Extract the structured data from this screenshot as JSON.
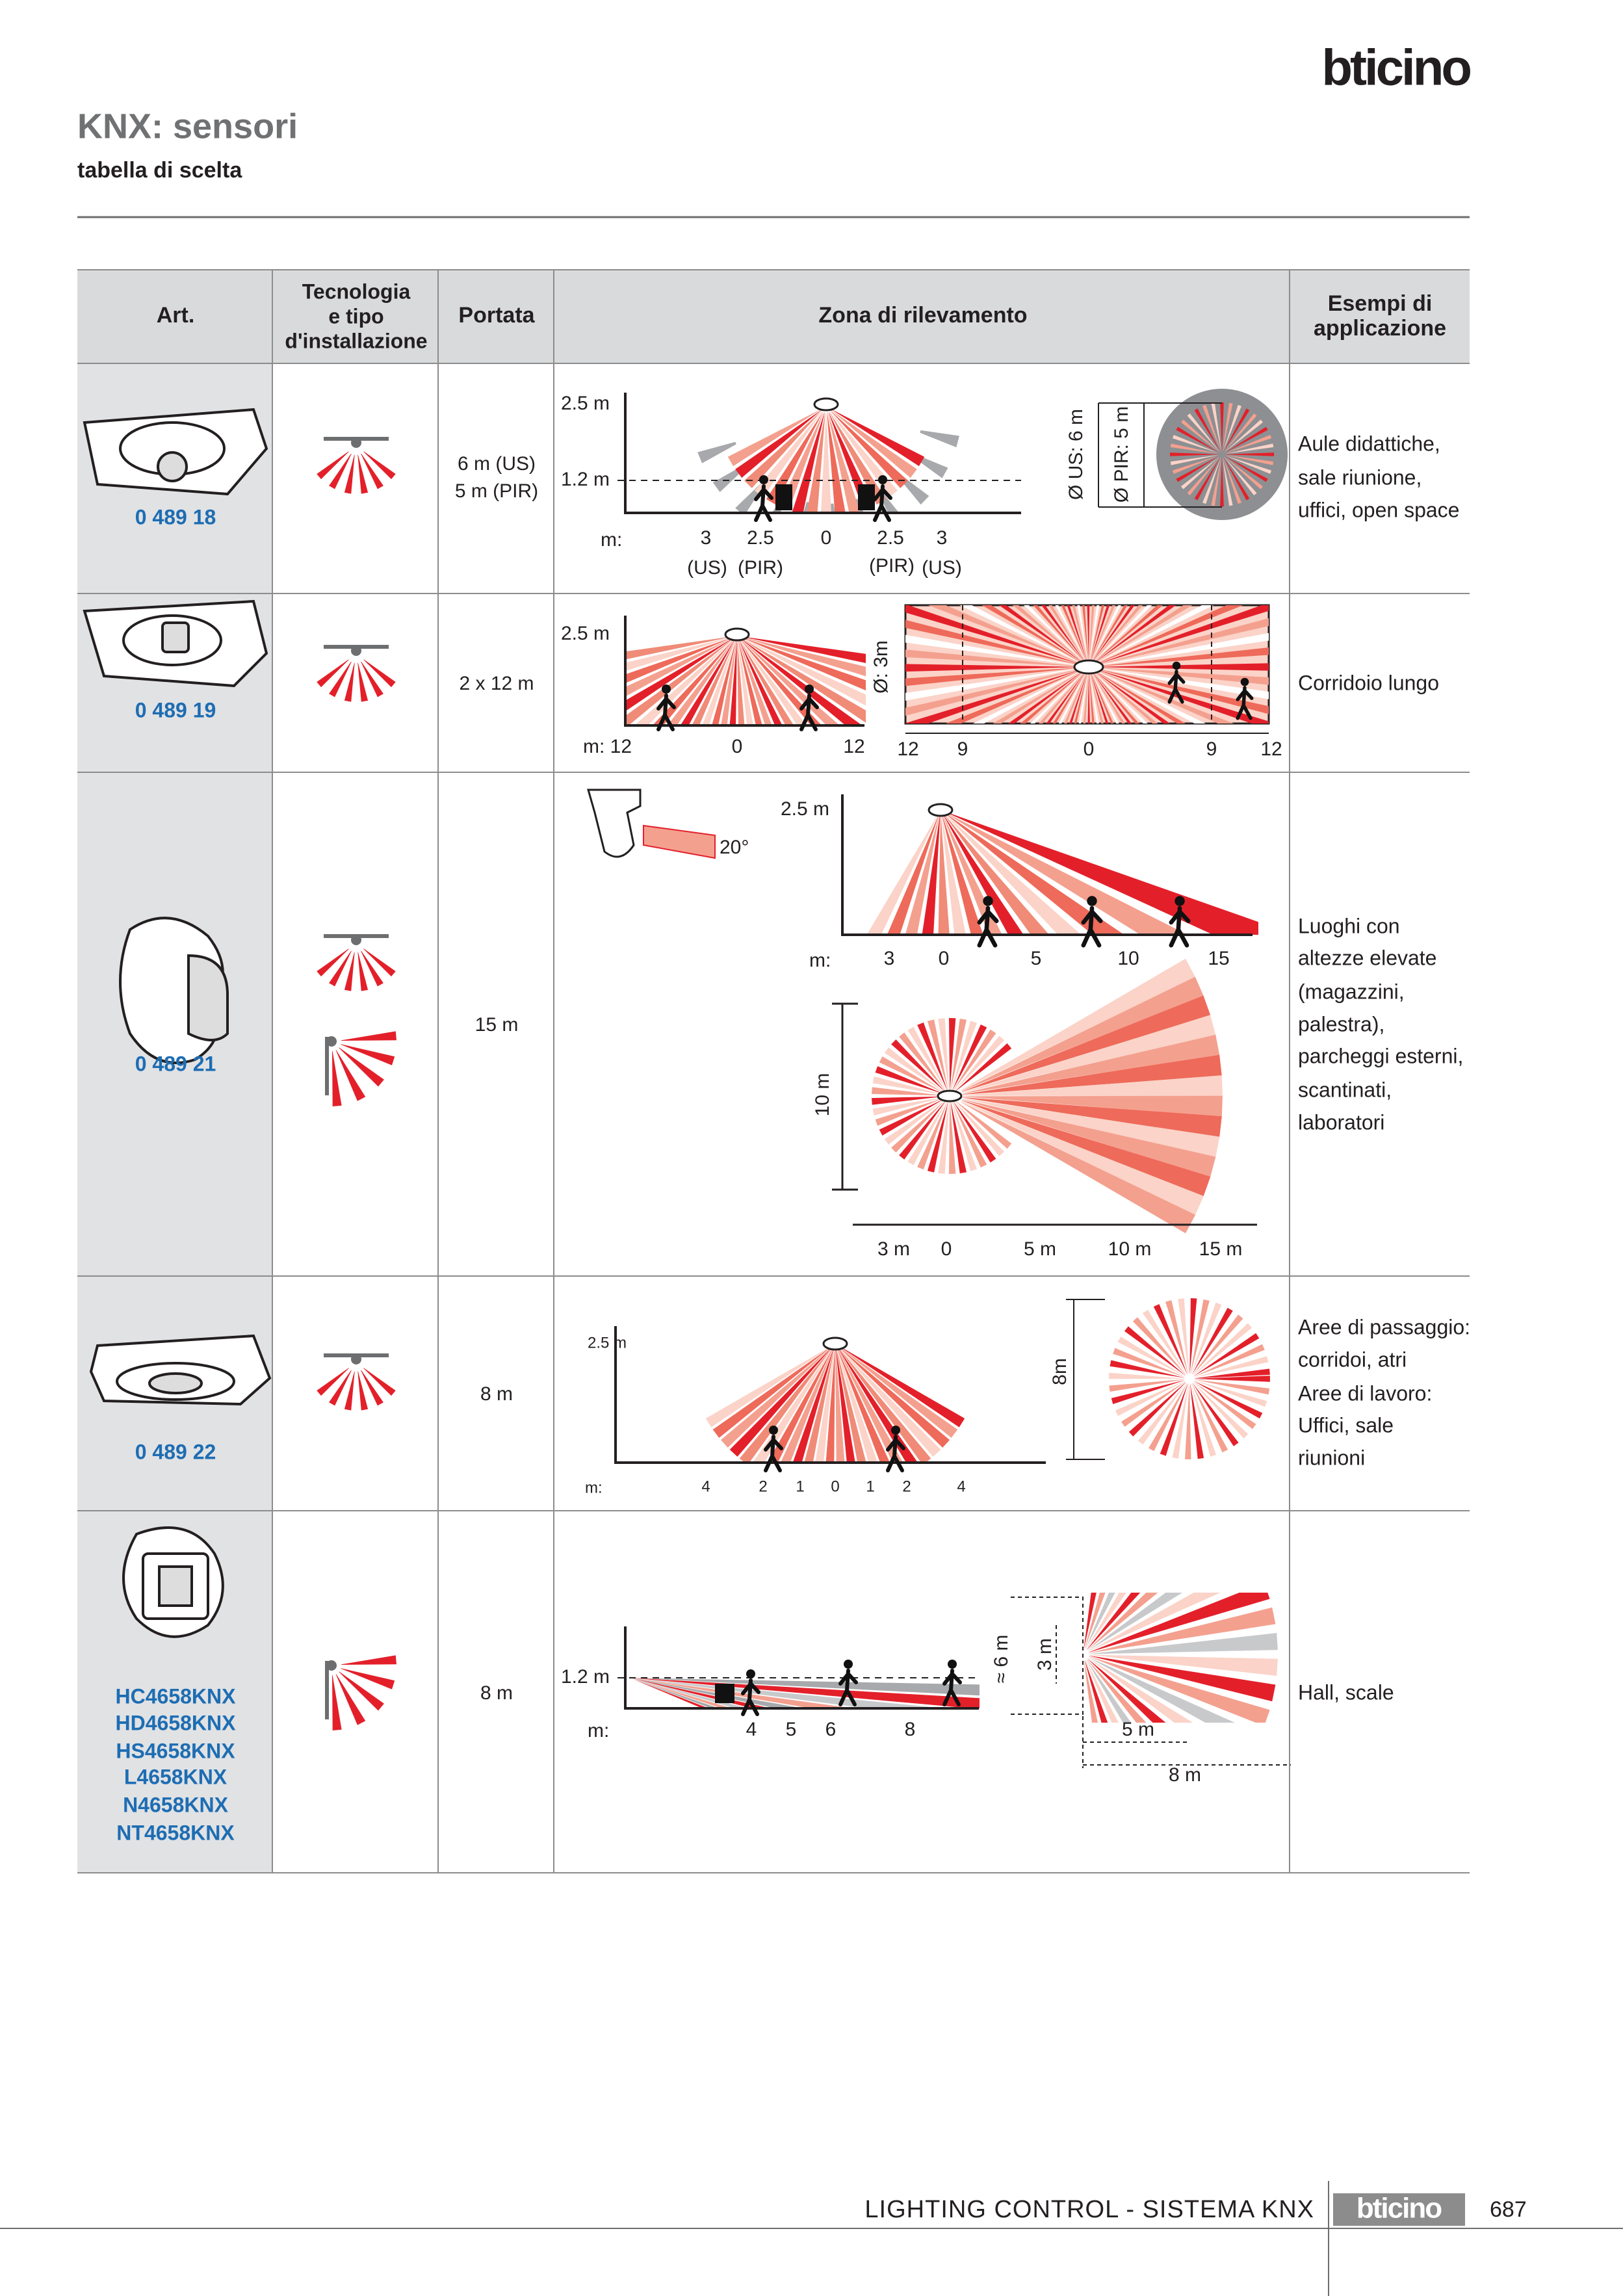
{
  "header": {
    "brand": "bticino",
    "title": "KNX: sensori",
    "subtitle": "tabella di scelta"
  },
  "table": {
    "columns": {
      "art": "Art.",
      "technology": [
        "Tecnologia",
        "e tipo",
        "d'installazione"
      ],
      "range": "Portata",
      "zone": "Zona di rilevamento",
      "applications": [
        "Esempi di",
        "applicazione"
      ]
    },
    "rows": [
      {
        "codes": [
          "0 489 18"
        ],
        "range": [
          "6 m (US)",
          "5 m (PIR)"
        ],
        "zone_labels": [
          "2.5 m",
          "1.2 m",
          "m:",
          "3",
          "2.5",
          "0",
          "2.5",
          "3",
          "(US)",
          "(PIR)",
          "(PIR)",
          "(US)",
          "Ø US: 6 m",
          "Ø PIR: 5 m"
        ],
        "applications": [
          "Aule didattiche,",
          "sale riunione,",
          "uffici, open space"
        ]
      },
      {
        "codes": [
          "0 489 19"
        ],
        "range": [
          "2 x 12 m"
        ],
        "zone_labels": [
          "2.5 m",
          "m: 12",
          "0",
          "12",
          "Ø: 3m",
          "12",
          "9",
          "0",
          "9",
          "12"
        ],
        "applications": [
          "Corridoio lungo"
        ]
      },
      {
        "codes": [
          "0 489 21"
        ],
        "range": [
          "15 m"
        ],
        "zone_labels": [
          "20°",
          "2.5 m",
          "m:",
          "3",
          "0",
          "5",
          "10",
          "15",
          "10 m",
          "3 m",
          "0",
          "5 m",
          "10 m",
          "15 m"
        ],
        "applications": [
          "Luoghi con",
          "altezze elevate",
          "(magazzini,",
          "palestra),",
          "parcheggi esterni,",
          "scantinati,",
          "laboratori"
        ]
      },
      {
        "codes": [
          "0 489 22"
        ],
        "range": [
          "8 m"
        ],
        "zone_labels": [
          "2.5 m",
          "m:",
          "4",
          "2",
          "1",
          "0",
          "1",
          "2",
          "4",
          "8m"
        ],
        "applications": [
          "Aree di passaggio:",
          "corridoi, atri",
          "Aree di lavoro:",
          "Uffici, sale",
          "riunioni"
        ]
      },
      {
        "codes": [
          "HC4658KNX",
          "HD4658KNX",
          "HS4658KNX",
          "L4658KNX",
          "N4658KNX",
          "NT4658KNX"
        ],
        "range": [
          "8 m"
        ],
        "zone_labels": [
          "1.2 m",
          "m:",
          "4",
          "5",
          "6",
          "8",
          "≈ 6 m",
          "3 m",
          "5 m",
          "8 m"
        ],
        "applications": [
          "Hall, scale"
        ]
      }
    ]
  },
  "footer": {
    "section": "LIGHTING CONTROL - SISTEMA KNX",
    "brand": "bticino",
    "page": "687"
  }
}
